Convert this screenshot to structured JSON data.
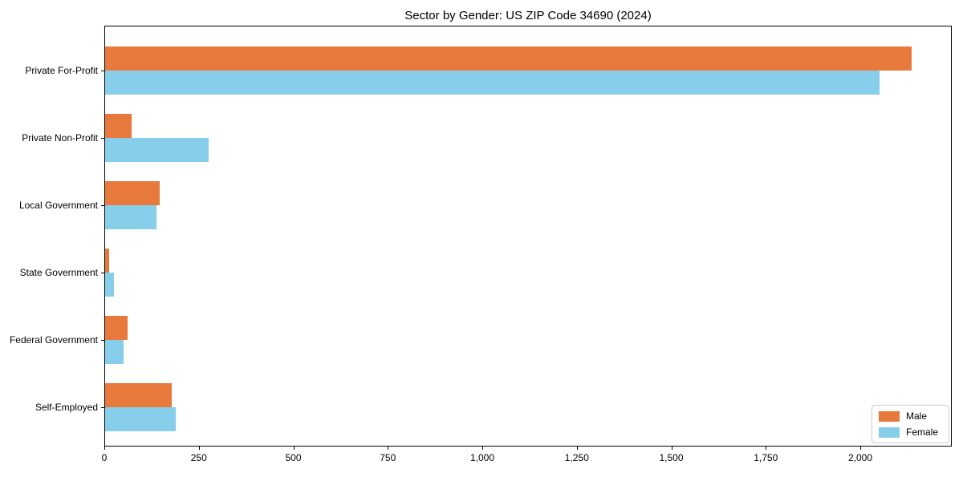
{
  "chart_data": {
    "type": "bar",
    "orientation": "horizontal",
    "title": "Sector by Gender: US ZIP Code 34690 (2024)",
    "categories": [
      "Private For-Profit",
      "Private Non-Profit",
      "Local Government",
      "State Government",
      "Federal Government",
      "Self-Employed"
    ],
    "series": [
      {
        "name": "Male",
        "color": "#e8793d",
        "values": [
          2135,
          73,
          146,
          12,
          61,
          179
        ]
      },
      {
        "name": "Female",
        "color": "#87ceeb",
        "values": [
          2050,
          277,
          138,
          25,
          50,
          188
        ]
      }
    ],
    "xlabel": "",
    "ylabel": "",
    "xlim": [
      0,
      2242
    ],
    "xticks": [
      0,
      250,
      500,
      750,
      1000,
      1250,
      1500,
      1750,
      2000
    ],
    "xtick_labels": [
      "0",
      "250",
      "500",
      "750",
      "1,000",
      "1,250",
      "1,500",
      "1,750",
      "2,000"
    ],
    "grid": false,
    "legend_position": "lower right"
  }
}
